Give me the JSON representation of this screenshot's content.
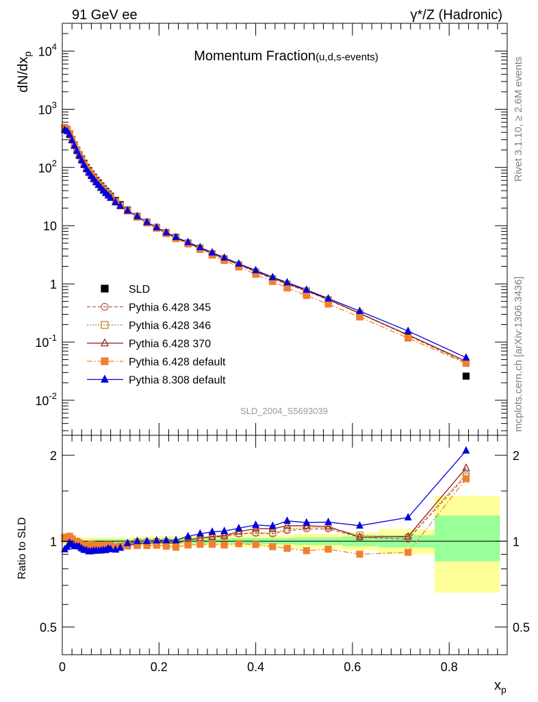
{
  "header": {
    "left": "91 GeV ee",
    "right": "γ*/Z (Hadronic)"
  },
  "side_labels": {
    "rivet": "Rivet 3.1.10, ≥ 2.6M events",
    "mcplots": "mcplots.cern.ch [arXiv:1306.3436]"
  },
  "main_plot": {
    "title": "Momentum Fraction",
    "title_sub": "(u,d,s-events)",
    "watermark": "SLD_2004_S5693039",
    "ylabel": "dN/dx",
    "ylabel_sub": "p",
    "yscale": "log",
    "ylim": [
      0.0025,
      30000
    ],
    "y_ticks": [
      {
        "v": 0.01,
        "base": "10",
        "exp": "-2"
      },
      {
        "v": 0.1,
        "base": "10",
        "exp": "-1"
      },
      {
        "v": 1,
        "base": "1",
        "exp": ""
      },
      {
        "v": 10,
        "base": "10",
        "exp": ""
      },
      {
        "v": 100,
        "base": "10",
        "exp": "2"
      },
      {
        "v": 1000,
        "base": "10",
        "exp": "3"
      },
      {
        "v": 10000,
        "base": "10",
        "exp": "4"
      }
    ]
  },
  "ratio_plot": {
    "ylabel": "Ratio to SLD",
    "ylim": [
      0.4,
      2.35
    ],
    "y_ticks": [
      {
        "v": 0.5,
        "label": "0.5"
      },
      {
        "v": 1,
        "label": "1"
      },
      {
        "v": 2,
        "label": "2"
      }
    ],
    "yellow_band": [
      {
        "x0": 0.0,
        "x1": 0.06,
        "lo": 0.97,
        "hi": 1.03
      },
      {
        "x0": 0.06,
        "x1": 0.15,
        "lo": 0.97,
        "hi": 1.03
      },
      {
        "x0": 0.15,
        "x1": 0.25,
        "lo": 0.96,
        "hi": 1.04
      },
      {
        "x0": 0.25,
        "x1": 0.35,
        "lo": 0.96,
        "hi": 1.04
      },
      {
        "x0": 0.35,
        "x1": 0.42,
        "lo": 0.95,
        "hi": 1.05
      },
      {
        "x0": 0.42,
        "x1": 0.48,
        "lo": 0.95,
        "hi": 1.05
      },
      {
        "x0": 0.48,
        "x1": 0.52,
        "lo": 0.94,
        "hi": 1.06
      },
      {
        "x0": 0.52,
        "x1": 0.58,
        "lo": 0.94,
        "hi": 1.06
      },
      {
        "x0": 0.58,
        "x1": 0.655,
        "lo": 0.93,
        "hi": 1.07
      },
      {
        "x0": 0.655,
        "x1": 0.77,
        "lo": 0.9,
        "hi": 1.1
      },
      {
        "x0": 0.77,
        "x1": 0.905,
        "lo": 0.66,
        "hi": 1.44
      }
    ],
    "green_band": [
      {
        "x0": 0.0,
        "x1": 0.06,
        "lo": 0.99,
        "hi": 1.01
      },
      {
        "x0": 0.06,
        "x1": 0.15,
        "lo": 0.985,
        "hi": 1.015
      },
      {
        "x0": 0.15,
        "x1": 0.25,
        "lo": 0.98,
        "hi": 1.02
      },
      {
        "x0": 0.25,
        "x1": 0.35,
        "lo": 0.98,
        "hi": 1.02
      },
      {
        "x0": 0.35,
        "x1": 0.42,
        "lo": 0.975,
        "hi": 1.025
      },
      {
        "x0": 0.42,
        "x1": 0.48,
        "lo": 0.975,
        "hi": 1.025
      },
      {
        "x0": 0.48,
        "x1": 0.52,
        "lo": 0.97,
        "hi": 1.03
      },
      {
        "x0": 0.52,
        "x1": 0.58,
        "lo": 0.97,
        "hi": 1.03
      },
      {
        "x0": 0.58,
        "x1": 0.655,
        "lo": 0.96,
        "hi": 1.04
      },
      {
        "x0": 0.655,
        "x1": 0.77,
        "lo": 0.95,
        "hi": 1.05
      },
      {
        "x0": 0.77,
        "x1": 0.905,
        "lo": 0.85,
        "hi": 1.23
      }
    ]
  },
  "x_axis": {
    "label": "x",
    "label_sub": "p",
    "xlim": [
      0,
      0.92
    ],
    "ticks": [
      {
        "v": 0,
        "label": "0"
      },
      {
        "v": 0.2,
        "label": "0.2"
      },
      {
        "v": 0.4,
        "label": "0.4"
      },
      {
        "v": 0.6,
        "label": "0.6"
      },
      {
        "v": 0.8,
        "label": "0.8"
      }
    ]
  },
  "chart_data": {
    "type": "scatter",
    "x": [
      0.005,
      0.01,
      0.015,
      0.02,
      0.025,
      0.03,
      0.035,
      0.04,
      0.045,
      0.05,
      0.055,
      0.06,
      0.065,
      0.07,
      0.075,
      0.08,
      0.085,
      0.09,
      0.095,
      0.1,
      0.11,
      0.12,
      0.135,
      0.155,
      0.175,
      0.195,
      0.215,
      0.235,
      0.26,
      0.285,
      0.31,
      0.335,
      0.365,
      0.4,
      0.435,
      0.465,
      0.505,
      0.55,
      0.615,
      0.715,
      0.835
    ],
    "series": [
      {
        "name": "SLD",
        "marker": "square",
        "color": "#000000",
        "values": [
          470,
          440,
          370,
          300,
          245,
          200,
          165,
          140,
          118,
          100,
          88,
          77,
          68,
          60,
          54,
          48,
          43,
          39,
          35,
          32,
          27,
          23,
          18.5,
          14.5,
          11.5,
          9.3,
          7.6,
          6.3,
          5.0,
          4.0,
          3.2,
          2.6,
          2.0,
          1.5,
          1.15,
          0.9,
          0.68,
          0.48,
          0.3,
          0.128,
          0.026
        ]
      },
      {
        "name": "Pythia 6.428 345",
        "marker": "circle-open",
        "line": "dashed",
        "color": "#b85c5c",
        "values": [
          480,
          450,
          380,
          302,
          240,
          196,
          160,
          134,
          112,
          95,
          83,
          73,
          65,
          57,
          51,
          45.5,
          41,
          37,
          33.5,
          30.5,
          25.5,
          22,
          18,
          14.3,
          11.3,
          9.2,
          7.5,
          6.2,
          5.05,
          4.1,
          3.3,
          2.7,
          2.12,
          1.6,
          1.22,
          0.98,
          0.75,
          0.53,
          0.31,
          0.13,
          0.044
        ]
      },
      {
        "name": "Pythia 6.428 346",
        "marker": "square-open",
        "line": "dotted",
        "color": "#b8802a",
        "values": [
          482,
          452,
          382,
          303,
          241,
          197,
          161,
          135,
          113,
          96,
          84,
          74,
          65.5,
          57.5,
          51.5,
          46,
          41.2,
          37.2,
          33.7,
          30.7,
          25.7,
          22.1,
          18.1,
          14.4,
          11.4,
          9.25,
          7.55,
          6.22,
          5.07,
          4.12,
          3.31,
          2.71,
          2.13,
          1.61,
          1.23,
          0.99,
          0.76,
          0.535,
          0.315,
          0.132,
          0.0445
        ]
      },
      {
        "name": "Pythia 6.428 370",
        "marker": "triangle-open",
        "line": "solid",
        "color": "#8b1a1a",
        "values": [
          478,
          448,
          378,
          300,
          239,
          195,
          159,
          133,
          111,
          94,
          82,
          72,
          64,
          56.5,
          50.5,
          45,
          40.5,
          36.6,
          33.2,
          30.2,
          25.3,
          21.8,
          17.9,
          14.2,
          11.3,
          9.2,
          7.5,
          6.2,
          5.05,
          4.1,
          3.32,
          2.72,
          2.16,
          1.66,
          1.27,
          1.02,
          0.77,
          0.54,
          0.31,
          0.133,
          0.047
        ]
      },
      {
        "name": "Pythia 6.428 default",
        "marker": "square",
        "line": "dashdot",
        "color": "#f08030",
        "values": [
          485,
          455,
          385,
          306,
          244,
          200,
          163,
          136,
          114,
          97,
          85,
          75,
          66,
          58,
          52,
          46.5,
          41.5,
          37.5,
          34,
          31,
          25.8,
          22,
          17.8,
          14,
          11.1,
          9.0,
          7.3,
          6.0,
          4.85,
          3.9,
          3.12,
          2.52,
          1.96,
          1.46,
          1.1,
          0.85,
          0.63,
          0.45,
          0.27,
          0.117,
          0.043
        ]
      },
      {
        "name": "Pythia 8.308 default",
        "marker": "triangle",
        "line": "solid",
        "color": "#0000dd",
        "values": [
          440,
          420,
          365,
          292,
          235,
          192,
          158,
          132,
          110,
          93,
          81,
          71,
          63,
          55.5,
          50,
          44.5,
          40,
          36.3,
          33,
          30,
          25.2,
          21.8,
          18.2,
          14.5,
          11.5,
          9.35,
          7.65,
          6.35,
          5.2,
          4.25,
          3.45,
          2.82,
          2.22,
          1.71,
          1.3,
          1.06,
          0.79,
          0.56,
          0.34,
          0.155,
          0.054
        ]
      }
    ]
  }
}
